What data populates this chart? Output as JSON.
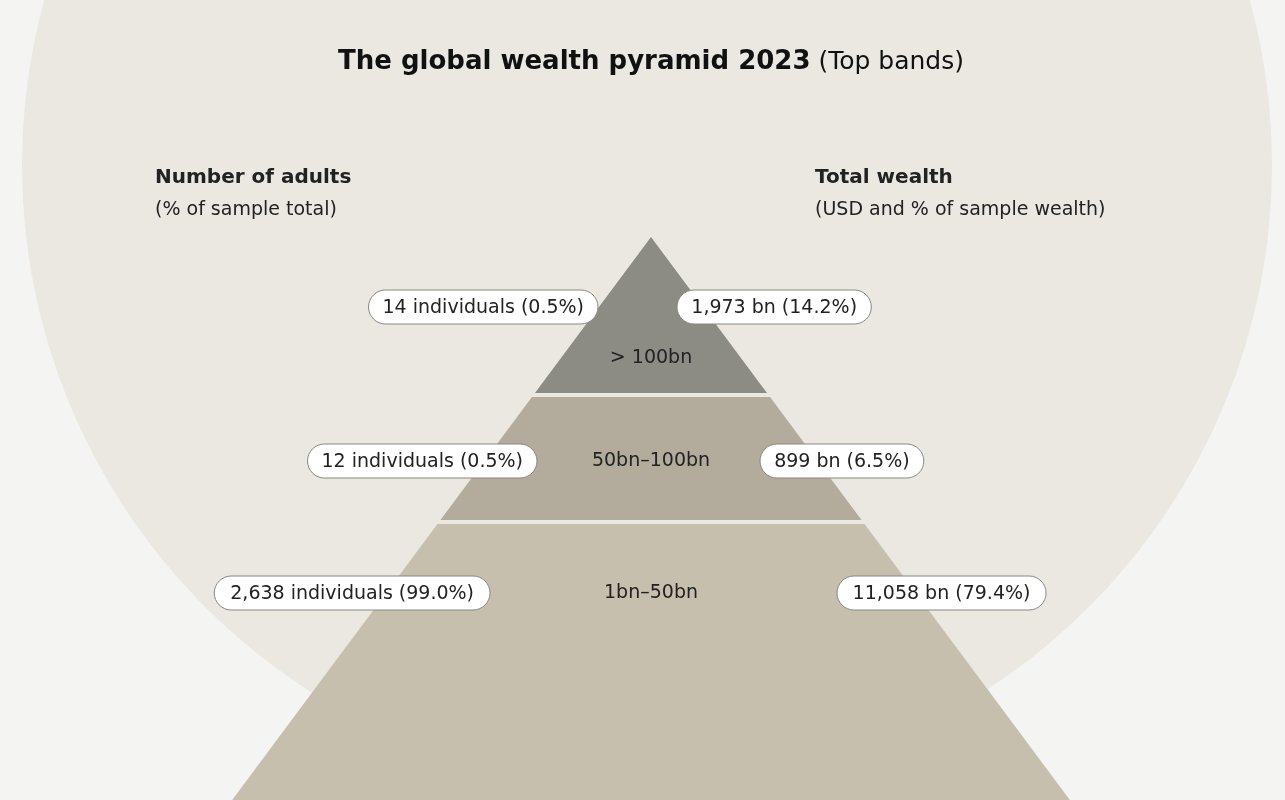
{
  "chart_data": {
    "type": "other",
    "title": "The global wealth pyramid 2023",
    "subtitle": "(Top bands)",
    "categories": [
      "> 100bn",
      "50bn–100bn",
      "1bn–50bn"
    ],
    "colors": [
      "#8c8b84",
      "#b3ac9d",
      "#c7bfae"
    ],
    "series": [
      {
        "values": [
          0.5,
          0.5,
          99.0
        ],
        "value_labels": [
          "14 individuals (0.5%)",
          "12 individuals (0.5%)",
          "2,638 individuals (99.0%)"
        ]
      },
      {
        "values": [
          14.2,
          6.5,
          79.4
        ],
        "value_labels": [
          "1,973 bn (14.2%)",
          "899 bn (6.5%)",
          "11,058 bn (79.4%)"
        ]
      }
    ],
    "ylabel": "Number of adults",
    "y2label": "Total wealth",
    "annotations": [
      "(% of sample total)",
      "(USD and % of sample wealth)"
    ]
  }
}
